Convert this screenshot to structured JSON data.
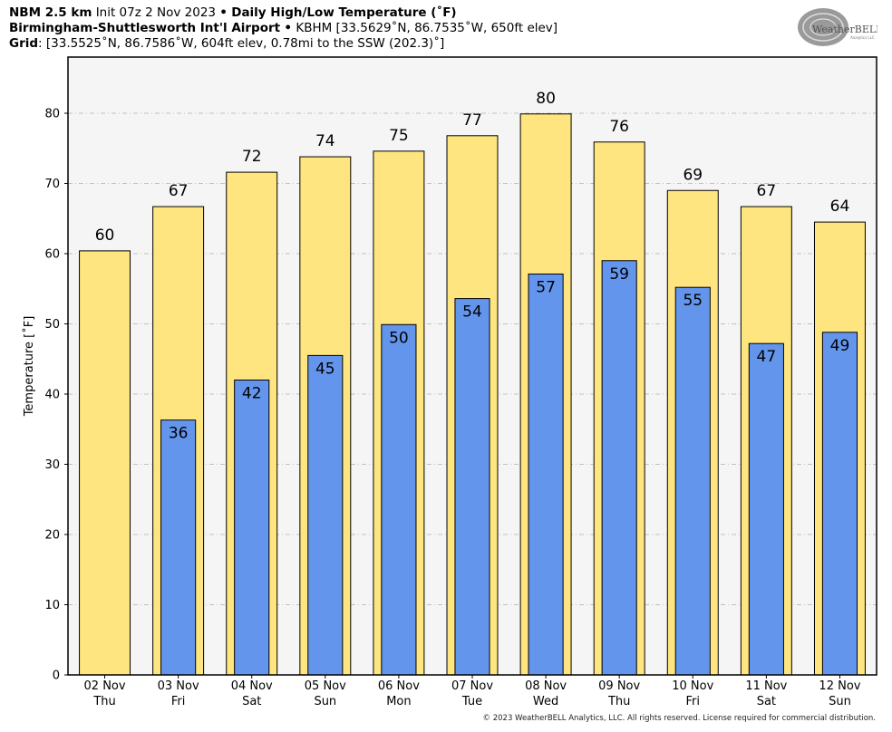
{
  "header": {
    "line1": {
      "model": "NBM 2.5 km",
      "init": "Init 07z 2 Nov 2023",
      "sep": "•",
      "product": "Daily High/Low Temperature (˚F)"
    },
    "line2": {
      "station": "Birmingham-Shuttlesworth Int'l Airport",
      "sep": "•",
      "detail": "KBHM [33.5629˚N, 86.7535˚W, 650ft elev]"
    },
    "line3": {
      "label": "Grid",
      "detail": ": [33.5525˚N, 86.7586˚W, 604ft elev, 0.78mi to the SSW (202.3)˚]"
    }
  },
  "logo": {
    "text": "WeatherBELL",
    "sub": "Analytics LLC"
  },
  "copyright": "© 2023 WeatherBELL Analytics, LLC. All rights reserved. License required for commercial distribution.",
  "colors": {
    "high": "#ffe57f",
    "low": "#6495ed",
    "plot_bg": "#f5f5f5",
    "grid": "#b0b0b0"
  },
  "chart_data": {
    "type": "bar",
    "title": "Daily High/Low Temperature (˚F)",
    "ylabel": "Temperature [˚F]",
    "xlabel": "",
    "ylim": [
      0,
      88
    ],
    "yticks": [
      0,
      10,
      20,
      30,
      40,
      50,
      60,
      70,
      80
    ],
    "grid": true,
    "categories": [
      {
        "date": "02 Nov",
        "day": "Thu"
      },
      {
        "date": "03 Nov",
        "day": "Fri"
      },
      {
        "date": "04 Nov",
        "day": "Sat"
      },
      {
        "date": "05 Nov",
        "day": "Sun"
      },
      {
        "date": "06 Nov",
        "day": "Mon"
      },
      {
        "date": "07 Nov",
        "day": "Tue"
      },
      {
        "date": "08 Nov",
        "day": "Wed"
      },
      {
        "date": "09 Nov",
        "day": "Thu"
      },
      {
        "date": "10 Nov",
        "day": "Fri"
      },
      {
        "date": "11 Nov",
        "day": "Sat"
      },
      {
        "date": "12 Nov",
        "day": "Sun"
      }
    ],
    "series": [
      {
        "key": "high",
        "values": [
          60.4,
          66.7,
          71.6,
          73.8,
          74.6,
          76.8,
          79.9,
          75.9,
          69.0,
          66.7,
          64.5
        ],
        "labels": [
          "60",
          "67",
          "72",
          "74",
          "75",
          "77",
          "80",
          "76",
          "69",
          "67",
          "64"
        ]
      },
      {
        "key": "low",
        "values": [
          null,
          36.3,
          42.0,
          45.5,
          49.9,
          53.6,
          57.1,
          59.0,
          55.2,
          47.2,
          48.8
        ],
        "labels": [
          null,
          "36",
          "42",
          "45",
          "50",
          "54",
          "57",
          "59",
          "55",
          "47",
          "49"
        ]
      }
    ]
  }
}
